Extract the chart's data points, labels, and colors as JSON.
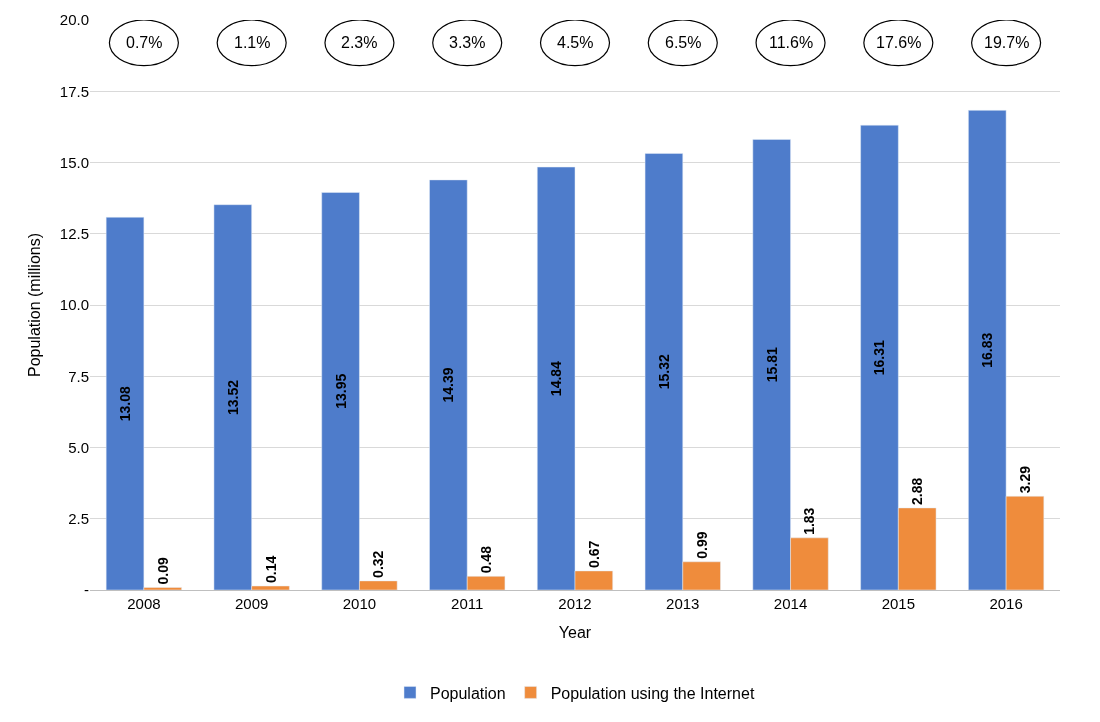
{
  "chart_data": {
    "type": "bar",
    "xlabel": "Year",
    "ylabel": "Population (millions)",
    "categories": [
      "2008",
      "2009",
      "2010",
      "2011",
      "2012",
      "2013",
      "2014",
      "2015",
      "2016"
    ],
    "series": [
      {
        "name": "Population",
        "color": "#4e7ccb",
        "values": [
          13.08,
          13.52,
          13.95,
          14.39,
          14.84,
          15.32,
          15.81,
          16.31,
          16.83
        ]
      },
      {
        "name": "Population using the Internet",
        "color": "#ef8c3c",
        "values": [
          0.09,
          0.14,
          0.32,
          0.48,
          0.67,
          0.99,
          1.83,
          2.88,
          3.29
        ]
      }
    ],
    "ylim": [
      0,
      20
    ],
    "yticks": [
      {
        "value": 0,
        "label": "-"
      },
      {
        "value": 2.5,
        "label": "2.5"
      },
      {
        "value": 5,
        "label": "5.0"
      },
      {
        "value": 7.5,
        "label": "7.5"
      },
      {
        "value": 10,
        "label": "10.0"
      },
      {
        "value": 12.5,
        "label": "12.5"
      },
      {
        "value": 15,
        "label": "15.0"
      },
      {
        "value": 17.5,
        "label": "17.5"
      },
      {
        "value": 20,
        "label": "20.0"
      }
    ],
    "grid": "y",
    "legend": "bottom",
    "data_labels": true,
    "annotations": [
      "0.7%",
      "1.1%",
      "2.3%",
      "3.3%",
      "4.5%",
      "6.5%",
      "11.6%",
      "17.6%",
      "19.7%"
    ]
  }
}
